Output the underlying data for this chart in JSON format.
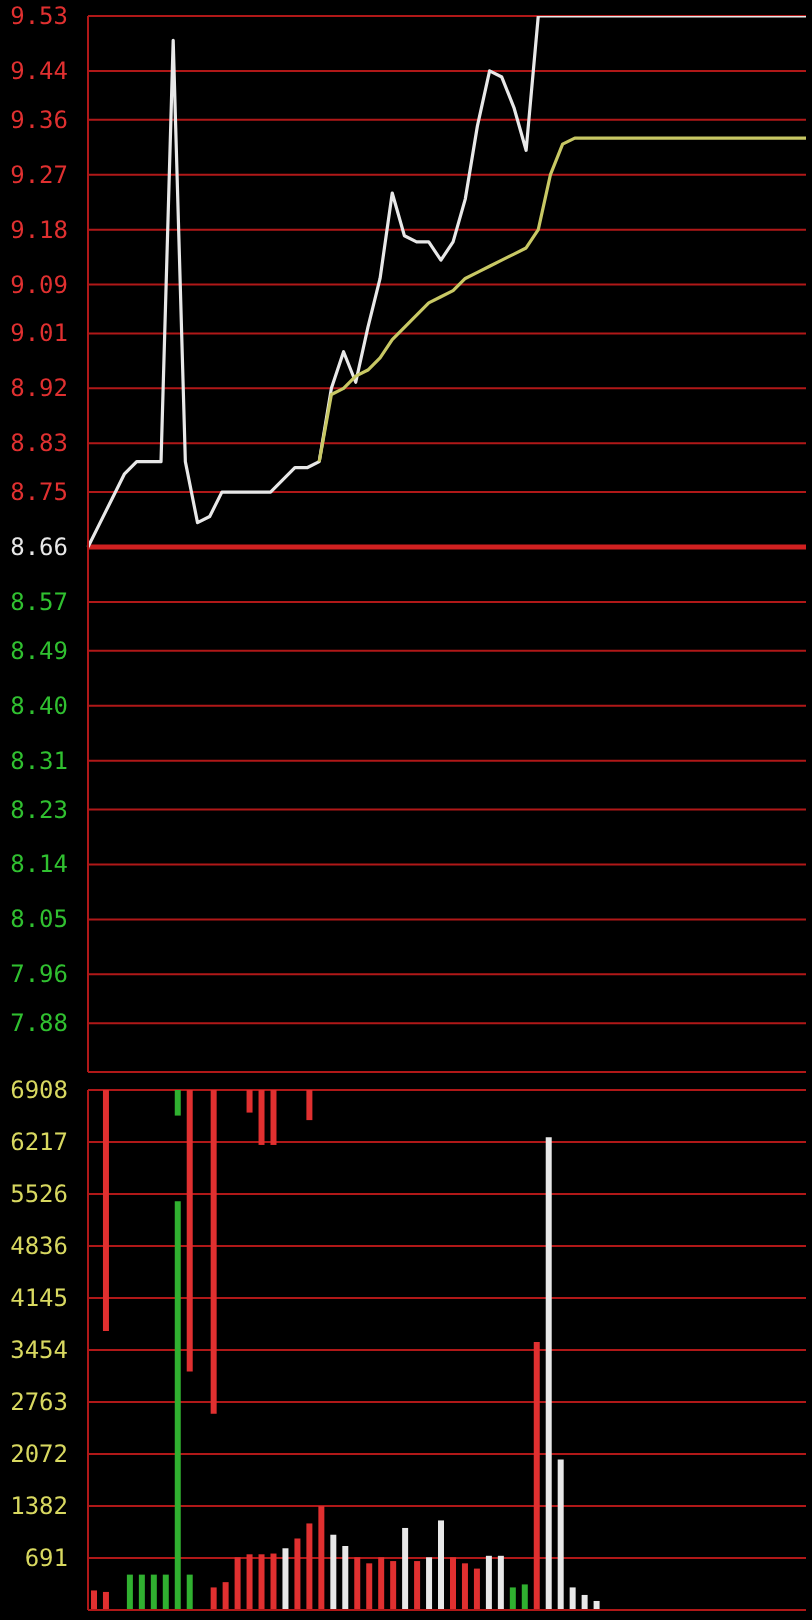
{
  "chart_data": [
    {
      "type": "line",
      "categories": [
        null,
        null,
        null,
        null,
        null,
        null,
        null,
        null,
        null,
        null,
        null,
        null,
        null,
        null,
        null,
        null,
        null,
        null,
        null,
        null,
        null,
        null,
        null,
        null,
        null,
        null,
        null,
        null,
        null,
        null,
        null,
        null,
        null,
        null,
        null,
        null,
        null,
        null,
        null,
        null,
        null,
        null,
        null,
        null,
        null,
        null,
        null,
        null,
        null,
        null,
        null,
        null,
        null,
        null,
        null,
        null,
        null,
        null,
        null,
        null
      ],
      "series": [
        {
          "color": "#e8e8e8",
          "values": [
            8.66,
            8.7,
            8.74,
            8.78,
            8.8,
            8.8,
            8.8,
            9.49,
            8.8,
            8.7,
            8.71,
            8.75,
            8.75,
            8.75,
            8.75,
            8.75,
            8.77,
            8.79,
            8.79,
            8.8,
            8.92,
            8.98,
            8.93,
            9.02,
            9.1,
            9.24,
            9.17,
            9.16,
            9.16,
            9.13,
            9.16,
            9.23,
            9.35,
            9.44,
            9.43,
            9.38,
            9.31,
            9.53,
            9.53,
            9.53,
            9.53,
            9.53,
            9.53,
            9.53,
            9.53,
            9.53,
            9.53,
            9.53,
            9.53,
            9.53,
            9.53,
            9.53,
            9.53,
            9.53,
            9.53,
            9.53,
            9.53,
            9.53,
            9.53,
            9.53
          ]
        },
        {
          "color": "#c8c864",
          "values": [
            null,
            null,
            null,
            null,
            null,
            null,
            null,
            null,
            null,
            null,
            null,
            null,
            null,
            null,
            null,
            null,
            null,
            null,
            null,
            8.8,
            8.91,
            8.92,
            8.94,
            8.95,
            8.97,
            9.0,
            9.02,
            9.04,
            9.06,
            9.07,
            9.08,
            9.1,
            9.11,
            9.12,
            9.13,
            9.14,
            9.15,
            9.18,
            9.27,
            9.32,
            9.33,
            9.33,
            9.33,
            9.33,
            9.33,
            9.33,
            9.33,
            9.33,
            9.33,
            9.33,
            9.33,
            9.33,
            9.33,
            9.33,
            9.33,
            9.33,
            9.33,
            9.33,
            9.33,
            9.33
          ]
        }
      ],
      "ylim": [
        7.8,
        9.53
      ],
      "yticks": [
        9.53,
        9.44,
        9.36,
        9.27,
        9.18,
        9.09,
        9.01,
        8.92,
        8.83,
        8.75,
        8.66,
        8.57,
        8.49,
        {
          "value": 8.4,
          "label": "8.40"
        },
        8.31,
        8.23,
        8.14,
        8.05,
        7.96,
        7.88
      ],
      "ref_lines": [
        {
          "axis": "y",
          "value": 8.66,
          "color": "#d02020"
        }
      ],
      "grid": "y",
      "tick_labels": "y",
      "legend": false
    },
    {
      "type": "bar",
      "categories": [
        null,
        null,
        null,
        null,
        null,
        null,
        null,
        null,
        null,
        null,
        null,
        null,
        null,
        null,
        null,
        null,
        null,
        null,
        null,
        null,
        null,
        null,
        null,
        null,
        null,
        null,
        null,
        null,
        null,
        null,
        null,
        null,
        null,
        null,
        null,
        null,
        null,
        null,
        null,
        null,
        null,
        null,
        null,
        null,
        null,
        null,
        null,
        null,
        null,
        null,
        null,
        null,
        null,
        null,
        null,
        null,
        null,
        null,
        null,
        null
      ],
      "series": [
        {
          "values": [
            260,
            240,
            null,
            470,
            470,
            470,
            470,
            5430,
            470,
            null,
            300,
            370,
            700,
            740,
            740,
            750,
            820,
            950,
            1150,
            1380,
            1000,
            850,
            700,
            620,
            700,
            650,
            1090,
            650,
            700,
            1190,
            700,
            620,
            550,
            720,
            720,
            300,
            340,
            3560,
            6280,
            2000,
            300,
            200,
            120,
            null,
            null,
            null,
            null,
            null,
            null,
            null,
            null,
            null,
            null,
            null,
            null,
            null,
            null,
            null,
            null,
            null
          ],
          "colors": [
            "#e03030",
            "#e03030",
            "#e03030",
            "#30b030",
            "#30b030",
            "#30b030",
            "#30b030",
            "#30b030",
            "#30b030",
            "#e03030",
            "#e03030",
            "#e03030",
            "#e03030",
            "#e03030",
            "#e03030",
            "#e03030",
            "#e8e8e8",
            "#e03030",
            "#e03030",
            "#e03030",
            "#e8e8e8",
            "#e8e8e8",
            "#e03030",
            "#e03030",
            "#e03030",
            "#e03030",
            "#e8e8e8",
            "#e03030",
            "#e8e8e8",
            "#e8e8e8",
            "#e03030",
            "#e03030",
            "#e03030",
            "#e8e8e8",
            "#e8e8e8",
            "#30b030",
            "#30b030",
            "#e03030",
            "#e8e8e8",
            "#e8e8e8",
            "#e8e8e8",
            "#e8e8e8",
            "#e8e8e8",
            "#e8e8e8",
            "#e8e8e8",
            "#e8e8e8",
            "#e8e8e8",
            "#e8e8e8",
            "#e8e8e8",
            "#e8e8e8",
            "#e8e8e8",
            "#e8e8e8",
            "#e8e8e8",
            "#e8e8e8",
            "#e8e8e8",
            "#e8e8e8",
            "#e8e8e8",
            "#e8e8e8",
            "#e8e8e8",
            "#e8e8e8"
          ]
        },
        {
          "values": [
            null,
            -3200,
            null,
            null,
            null,
            null,
            null,
            -340,
            -3740,
            null,
            -4300,
            null,
            null,
            -300,
            -730,
            -730,
            null,
            null,
            -400,
            null,
            null,
            null,
            null,
            null,
            null,
            null,
            null,
            null,
            null,
            null,
            null,
            null,
            null,
            null,
            null,
            null,
            null,
            null,
            null,
            null,
            null,
            null,
            null,
            null,
            null,
            null,
            null,
            null,
            null,
            null,
            null,
            null,
            null,
            null,
            null,
            null,
            null,
            null,
            null,
            null
          ],
          "base": [
            null,
            6908,
            null,
            null,
            null,
            null,
            null,
            6908,
            6908,
            null,
            6908,
            null,
            null,
            6908,
            6908,
            6908,
            null,
            null,
            6908,
            null,
            null,
            null,
            null,
            null,
            null,
            null,
            null,
            null,
            null,
            null,
            null,
            null,
            null,
            null,
            null,
            null,
            null,
            null,
            null,
            null,
            null,
            null,
            null,
            null,
            null,
            null,
            null,
            null,
            null,
            null,
            null,
            null,
            null,
            null,
            null,
            null,
            null,
            null,
            null,
            null
          ],
          "colors": [
            "#e03030",
            "#e03030",
            "#e03030",
            "#e03030",
            "#e03030",
            "#e03030",
            "#e03030",
            "#30b030",
            "#e03030",
            "#e03030",
            "#e03030",
            "#e03030",
            "#e03030",
            "#e03030",
            "#e03030",
            "#e03030",
            "#e03030",
            "#e03030",
            "#e03030",
            "#e03030",
            "#e03030",
            "#e03030",
            "#e03030",
            "#e03030",
            "#e03030",
            "#e03030",
            "#e03030",
            "#e03030",
            "#e03030",
            "#e03030",
            "#e03030",
            "#e03030",
            "#e03030",
            "#e03030",
            "#e03030",
            "#e03030",
            "#e03030",
            "#e03030",
            "#e03030",
            "#e03030",
            "#e03030",
            "#e03030",
            "#e03030",
            "#e03030",
            "#e03030",
            "#e03030",
            "#e03030",
            "#e03030",
            "#e03030",
            "#e03030",
            "#e03030",
            "#e03030",
            "#e03030",
            "#e03030",
            "#e03030",
            "#e03030",
            "#e03030",
            "#e03030",
            "#e03030",
            "#e03030"
          ]
        }
      ],
      "ylim": [
        0,
        6908
      ],
      "yticks": [
        691,
        1382,
        2072,
        2763,
        3454,
        4145,
        4836,
        5526,
        6217,
        6908
      ],
      "grid": "y",
      "tick_labels": "y",
      "legend": false
    }
  ]
}
